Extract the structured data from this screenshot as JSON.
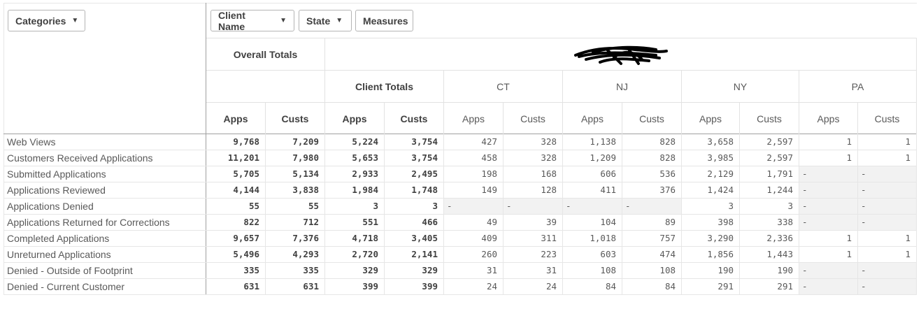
{
  "toolbar": {
    "categories_label": "Categories",
    "client_name_label": "Client Name",
    "state_label": "State",
    "measures_label": "Measures"
  },
  "headers": {
    "overall_totals": "Overall Totals",
    "client_totals": "Client Totals",
    "states": [
      "CT",
      "NJ",
      "NY",
      "PA"
    ],
    "measure_labels": [
      "Apps",
      "Custs"
    ]
  },
  "rows": [
    {
      "label": "Web Views",
      "values": [
        "9,768",
        "7,209",
        "5,224",
        "3,754",
        "427",
        "328",
        "1,138",
        "828",
        "3,658",
        "2,597",
        "1",
        "1"
      ]
    },
    {
      "label": "Customers Received Applications",
      "values": [
        "11,201",
        "7,980",
        "5,653",
        "3,754",
        "458",
        "328",
        "1,209",
        "828",
        "3,985",
        "2,597",
        "1",
        "1"
      ]
    },
    {
      "label": "Submitted Applications",
      "values": [
        "5,705",
        "5,134",
        "2,933",
        "2,495",
        "198",
        "168",
        "606",
        "536",
        "2,129",
        "1,791",
        "-",
        "-"
      ]
    },
    {
      "label": "Applications Reviewed",
      "values": [
        "4,144",
        "3,838",
        "1,984",
        "1,748",
        "149",
        "128",
        "411",
        "376",
        "1,424",
        "1,244",
        "-",
        "-"
      ]
    },
    {
      "label": "Applications Denied",
      "values": [
        "55",
        "55",
        "3",
        "3",
        "-",
        "-",
        "-",
        "-",
        "3",
        "3",
        "-",
        "-"
      ]
    },
    {
      "label": "Applications Returned for Corrections",
      "values": [
        "822",
        "712",
        "551",
        "466",
        "49",
        "39",
        "104",
        "89",
        "398",
        "338",
        "-",
        "-"
      ]
    },
    {
      "label": "Completed Applications",
      "values": [
        "9,657",
        "7,376",
        "4,718",
        "3,405",
        "409",
        "311",
        "1,018",
        "757",
        "3,290",
        "2,336",
        "1",
        "1"
      ]
    },
    {
      "label": "Unreturned Applications",
      "values": [
        "5,496",
        "4,293",
        "2,720",
        "2,141",
        "260",
        "223",
        "603",
        "474",
        "1,856",
        "1,443",
        "1",
        "1"
      ]
    },
    {
      "label": "Denied - Outside of Footprint",
      "values": [
        "335",
        "335",
        "329",
        "329",
        "31",
        "31",
        "108",
        "108",
        "190",
        "190",
        "-",
        "-"
      ]
    },
    {
      "label": "Denied - Current Customer",
      "values": [
        "631",
        "631",
        "399",
        "399",
        "24",
        "24",
        "84",
        "84",
        "291",
        "291",
        "-",
        "-"
      ]
    }
  ]
}
